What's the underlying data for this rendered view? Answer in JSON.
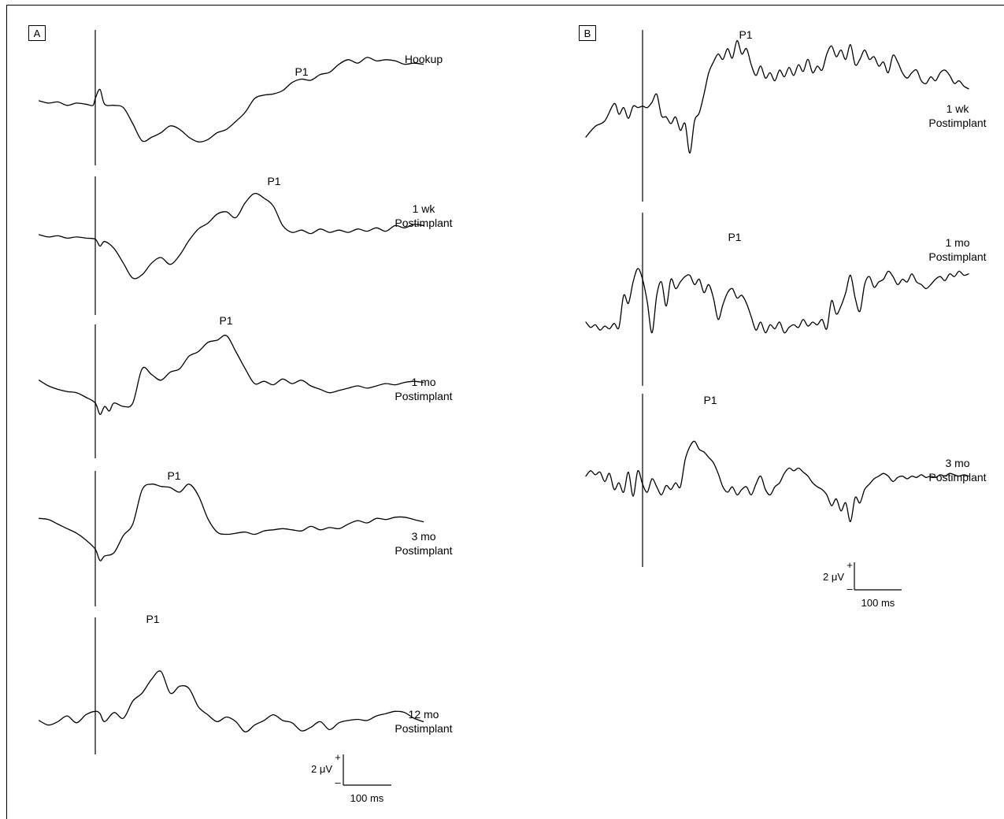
{
  "panels": [
    {
      "id": "A",
      "label": "A",
      "peak_label": "P1",
      "scale_bar": {
        "amplitude": "2 μV",
        "plus": "+",
        "minus": "–",
        "time": "100 ms"
      },
      "traces": [
        {
          "lines": [
            "Hookup"
          ]
        },
        {
          "lines": [
            "1 wk",
            "Postimplant"
          ]
        },
        {
          "lines": [
            "1 mo",
            "Postimplant"
          ]
        },
        {
          "lines": [
            "3 mo",
            "Postimplant"
          ]
        },
        {
          "lines": [
            "12 mo",
            "Postimplant"
          ]
        }
      ]
    },
    {
      "id": "B",
      "label": "B",
      "peak_label": "P1",
      "scale_bar": {
        "amplitude": "2 μV",
        "plus": "+",
        "minus": "–",
        "time": "100 ms"
      },
      "traces": [
        {
          "lines": [
            "1 wk",
            "Postimplant"
          ]
        },
        {
          "lines": [
            "1 mo",
            "Postimplant"
          ]
        },
        {
          "lines": [
            "3 mo",
            "Postimplant"
          ]
        }
      ]
    }
  ],
  "chart_data": [
    {
      "type": "line",
      "panel": "A",
      "description_units": {
        "time": "ms relative to stimulus onset",
        "amplitude": "μV (positive up)"
      },
      "series": [
        {
          "name": "Hookup",
          "peak": "P1",
          "x": [
            -120,
            -100,
            -80,
            -60,
            -40,
            -20,
            -5,
            0,
            10,
            20,
            40,
            60,
            80,
            100,
            120,
            140,
            160,
            180,
            200,
            220,
            240,
            260,
            280,
            300,
            320,
            340,
            360,
            380,
            400,
            420,
            440,
            460,
            480,
            500,
            520,
            540,
            560,
            580,
            600,
            620,
            640,
            660,
            680,
            700
          ],
          "y": [
            0,
            -0.2,
            -0.1,
            -0.4,
            -0.2,
            -0.3,
            -0.4,
            0.2,
            1.0,
            -0.3,
            -0.4,
            -0.6,
            -2.0,
            -3.5,
            -3.2,
            -2.8,
            -2.2,
            -2.5,
            -3.2,
            -3.6,
            -3.4,
            -2.8,
            -2.5,
            -1.8,
            -1.0,
            0.2,
            0.5,
            0.6,
            0.9,
            1.6,
            1.9,
            1.8,
            2.3,
            2.5,
            3.2,
            3.6,
            3.3,
            3.8,
            3.5,
            3.6,
            3.5,
            3.2,
            3.3,
            3.2
          ]
        },
        {
          "name": "1 wk Postimplant",
          "peak": "P1",
          "x": [
            -120,
            -100,
            -80,
            -60,
            -40,
            -20,
            0,
            10,
            20,
            40,
            60,
            80,
            100,
            120,
            140,
            160,
            180,
            200,
            220,
            240,
            260,
            280,
            300,
            320,
            340,
            360,
            380,
            400,
            420,
            440,
            460,
            480,
            500,
            520,
            540,
            560,
            580,
            600,
            620,
            640,
            660,
            680,
            700
          ],
          "y": [
            0,
            -0.2,
            -0.1,
            -0.3,
            -0.2,
            -0.3,
            -0.4,
            -1.0,
            -0.6,
            -1.2,
            -2.5,
            -3.8,
            -3.5,
            -2.5,
            -2.0,
            -2.6,
            -1.8,
            -0.5,
            0.5,
            1.0,
            1.8,
            2.0,
            1.5,
            2.8,
            3.6,
            3.2,
            2.5,
            0.8,
            0.2,
            0.4,
            0.1,
            0.5,
            0.2,
            0.4,
            0.2,
            0.5,
            0.3,
            0.6,
            0.3,
            0.8,
            0.6,
            0.9,
            0.8
          ]
        },
        {
          "name": "1 mo Postimplant",
          "peak": "P1",
          "x": [
            -120,
            -100,
            -80,
            -60,
            -40,
            -20,
            0,
            10,
            20,
            30,
            40,
            60,
            80,
            100,
            120,
            140,
            160,
            180,
            200,
            220,
            240,
            260,
            280,
            300,
            320,
            340,
            360,
            380,
            400,
            420,
            440,
            460,
            480,
            500,
            520,
            540,
            560,
            580,
            600,
            620,
            640,
            660,
            680,
            700
          ],
          "y": [
            0.5,
            0,
            -0.3,
            -0.5,
            -0.6,
            -1.0,
            -1.5,
            -2.5,
            -1.8,
            -2.2,
            -1.5,
            -1.8,
            -1.5,
            1.5,
            1.0,
            0.5,
            1.2,
            1.5,
            2.6,
            3.0,
            3.8,
            4.0,
            4.4,
            3.0,
            1.5,
            0.2,
            0.4,
            0.1,
            0.6,
            0.2,
            0.5,
            0,
            -0.3,
            -0.6,
            -0.4,
            -0.2,
            0,
            -0.2,
            0,
            0.2,
            0.1,
            0.3,
            0.4,
            0.3
          ]
        },
        {
          "name": "3 mo Postimplant",
          "peak": "P1",
          "x": [
            -120,
            -100,
            -80,
            -60,
            -40,
            -20,
            0,
            10,
            20,
            40,
            60,
            80,
            100,
            120,
            140,
            160,
            180,
            200,
            220,
            240,
            260,
            280,
            300,
            320,
            340,
            360,
            380,
            400,
            420,
            440,
            460,
            480,
            500,
            520,
            540,
            560,
            580,
            600,
            620,
            640,
            660,
            680,
            700
          ],
          "y": [
            1.5,
            1.4,
            1.0,
            0.6,
            0.2,
            -0.4,
            -1.2,
            -2.2,
            -1.8,
            -1.5,
            0,
            1.0,
            4.0,
            4.5,
            4.3,
            4.2,
            3.8,
            4.5,
            3.5,
            1.5,
            0.3,
            0.1,
            0.2,
            0.3,
            0.1,
            0.4,
            0.5,
            0.6,
            0.5,
            0.4,
            0.8,
            0.5,
            0.7,
            0.6,
            1.0,
            1.3,
            1.1,
            1.5,
            1.4,
            1.6,
            1.6,
            1.4,
            1.2
          ]
        },
        {
          "name": "12 mo Postimplant",
          "peak": "P1",
          "x": [
            -120,
            -100,
            -80,
            -60,
            -40,
            -20,
            0,
            10,
            20,
            40,
            60,
            80,
            100,
            120,
            140,
            160,
            180,
            200,
            220,
            240,
            260,
            280,
            300,
            320,
            340,
            360,
            380,
            400,
            420,
            440,
            460,
            480,
            500,
            520,
            540,
            560,
            580,
            600,
            620,
            640,
            660,
            680,
            700
          ],
          "y": [
            -0.2,
            -0.6,
            -0.3,
            0.2,
            -0.4,
            0.3,
            0.6,
            0.4,
            -0.3,
            0.5,
            0,
            1.5,
            2.2,
            3.4,
            4.1,
            2.2,
            2.8,
            2.6,
            1.0,
            0.3,
            -0.3,
            0.1,
            -0.3,
            -1.2,
            -0.6,
            -0.2,
            0.3,
            -0.2,
            -0.4,
            -1.1,
            -0.8,
            -0.3,
            -1.0,
            -0.4,
            -0.2,
            -0.1,
            -0.2,
            0.2,
            0.4,
            0.6,
            0.5,
            0,
            -0.3
          ]
        }
      ]
    },
    {
      "type": "line",
      "panel": "B",
      "description_units": {
        "time": "ms relative to stimulus onset",
        "amplitude": "μV (positive up)"
      },
      "series": [
        {
          "name": "1 wk Postimplant",
          "peak": "P1",
          "x": [
            -120,
            -100,
            -80,
            -60,
            -50,
            -40,
            -30,
            -20,
            -10,
            0,
            10,
            20,
            30,
            40,
            50,
            60,
            70,
            80,
            90,
            100,
            110,
            120,
            130,
            140,
            150,
            160,
            170,
            180,
            190,
            200,
            210,
            220,
            230,
            240,
            250,
            260,
            270,
            280,
            290,
            300,
            310,
            320,
            330,
            340,
            350,
            360,
            370,
            380,
            390,
            400,
            410,
            420,
            430,
            440,
            450,
            460,
            470,
            480,
            490,
            500,
            510,
            520,
            530,
            540,
            550,
            560,
            570,
            580,
            590,
            600,
            610,
            620,
            630,
            640,
            650,
            660,
            670,
            680,
            690
          ],
          "y": [
            -2.0,
            -1.2,
            -0.8,
            0.5,
            -0.3,
            0.2,
            -0.6,
            0.3,
            0.2,
            0.3,
            0.2,
            0.6,
            1.2,
            -0.4,
            -0.5,
            -1.0,
            -0.5,
            -1.5,
            -1.0,
            -3.2,
            -0.8,
            -0.2,
            1.2,
            2.8,
            3.6,
            4.2,
            3.8,
            4.6,
            3.9,
            5.2,
            4.2,
            4.6,
            3.4,
            2.6,
            3.3,
            2.4,
            2.8,
            2.2,
            3.0,
            2.5,
            3.2,
            2.6,
            3.4,
            2.9,
            3.8,
            2.8,
            3.3,
            3.0,
            4.2,
            4.8,
            4.0,
            4.5,
            3.8,
            4.9,
            3.4,
            3.8,
            4.5,
            3.8,
            4.0,
            3.3,
            3.6,
            2.8,
            4.1,
            3.6,
            2.8,
            2.4,
            2.8,
            3.0,
            2.2,
            2.0,
            2.5,
            2.2,
            2.8,
            3.0,
            2.6,
            2.0,
            2.2,
            1.8,
            1.6
          ]
        },
        {
          "name": "1 mo Postimplant",
          "peak": "P1",
          "x": [
            -120,
            -110,
            -100,
            -90,
            -80,
            -70,
            -60,
            -50,
            -40,
            -30,
            -20,
            -10,
            0,
            10,
            20,
            30,
            40,
            50,
            60,
            70,
            80,
            90,
            100,
            110,
            120,
            130,
            140,
            150,
            160,
            170,
            180,
            190,
            200,
            210,
            220,
            230,
            240,
            250,
            260,
            270,
            280,
            290,
            300,
            310,
            320,
            330,
            340,
            350,
            360,
            370,
            380,
            390,
            400,
            410,
            420,
            430,
            440,
            450,
            460,
            470,
            480,
            490,
            500,
            510,
            520,
            530,
            540,
            550,
            560,
            570,
            580,
            590,
            600,
            610,
            620,
            630,
            640,
            650,
            660,
            670,
            680,
            690
          ],
          "y": [
            -1.0,
            -1.4,
            -1.2,
            -1.6,
            -1.3,
            -1.5,
            -1.1,
            -1.4,
            1.0,
            0.4,
            2.0,
            3.0,
            2.2,
            0.5,
            -1.8,
            1.0,
            2.0,
            0.2,
            2.2,
            1.5,
            2.0,
            2.4,
            2.5,
            1.8,
            2.2,
            1.2,
            1.8,
            0.8,
            -0.8,
            0.3,
            1.2,
            1.5,
            0.8,
            1.0,
            0.4,
            -0.6,
            -1.6,
            -1.0,
            -1.8,
            -1.2,
            -1.5,
            -1.0,
            -1.8,
            -1.4,
            -1.2,
            -1.4,
            -0.8,
            -1.3,
            -1.0,
            -1.2,
            -0.8,
            -1.5,
            0.6,
            -0.4,
            0.2,
            1.2,
            2.5,
            0.8,
            -0.2,
            1.8,
            2.4,
            1.6,
            2.0,
            2.2,
            2.8,
            2.4,
            1.8,
            2.2,
            2.0,
            2.6,
            2.0,
            1.8,
            1.5,
            1.8,
            2.2,
            2.4,
            2.1,
            2.6,
            2.4,
            2.8,
            2.5,
            2.6
          ]
        },
        {
          "name": "3 mo Postimplant",
          "peak": "P1",
          "x": [
            -120,
            -110,
            -100,
            -90,
            -80,
            -70,
            -60,
            -50,
            -40,
            -30,
            -20,
            -10,
            0,
            10,
            20,
            30,
            40,
            50,
            60,
            70,
            80,
            90,
            100,
            110,
            120,
            130,
            140,
            150,
            160,
            170,
            180,
            190,
            200,
            210,
            220,
            230,
            240,
            250,
            260,
            270,
            280,
            290,
            300,
            310,
            320,
            330,
            340,
            350,
            360,
            370,
            380,
            390,
            400,
            410,
            420,
            430,
            440,
            450,
            460,
            470,
            480,
            490,
            500,
            510,
            520,
            530,
            540,
            550,
            560,
            570,
            580,
            590,
            600,
            610,
            620,
            630,
            640,
            650,
            660,
            670,
            680,
            690
          ],
          "y": [
            0.2,
            0.6,
            0.3,
            0.5,
            -0.2,
            0.4,
            -0.8,
            -0.3,
            -1.0,
            0.5,
            -1.3,
            0.6,
            -0.4,
            -1.0,
            0,
            -0.6,
            -1.2,
            -0.5,
            -0.8,
            -0.3,
            -0.6,
            1.4,
            2.4,
            2.8,
            2.2,
            2.0,
            1.6,
            1.2,
            0.4,
            -0.6,
            -1.0,
            -0.6,
            -1.2,
            -0.8,
            -0.6,
            -1.2,
            -0.4,
            0.2,
            -0.8,
            -1.2,
            -0.6,
            -0.3,
            0.4,
            0.8,
            0.6,
            0.8,
            0.5,
            0.2,
            -0.3,
            -0.6,
            -0.8,
            -1.2,
            -2.0,
            -1.5,
            -2.4,
            -1.8,
            -3.2,
            -1.4,
            -1.8,
            -0.8,
            -0.4,
            0,
            0.2,
            0.4,
            0.2,
            -0.2,
            0.1,
            0.2,
            0,
            0.2,
            0.1,
            0.3,
            0.1,
            0.2,
            0.1,
            0.3,
            0.2,
            0.4,
            0.3,
            0.2,
            0.3,
            0.2
          ]
        }
      ]
    }
  ]
}
